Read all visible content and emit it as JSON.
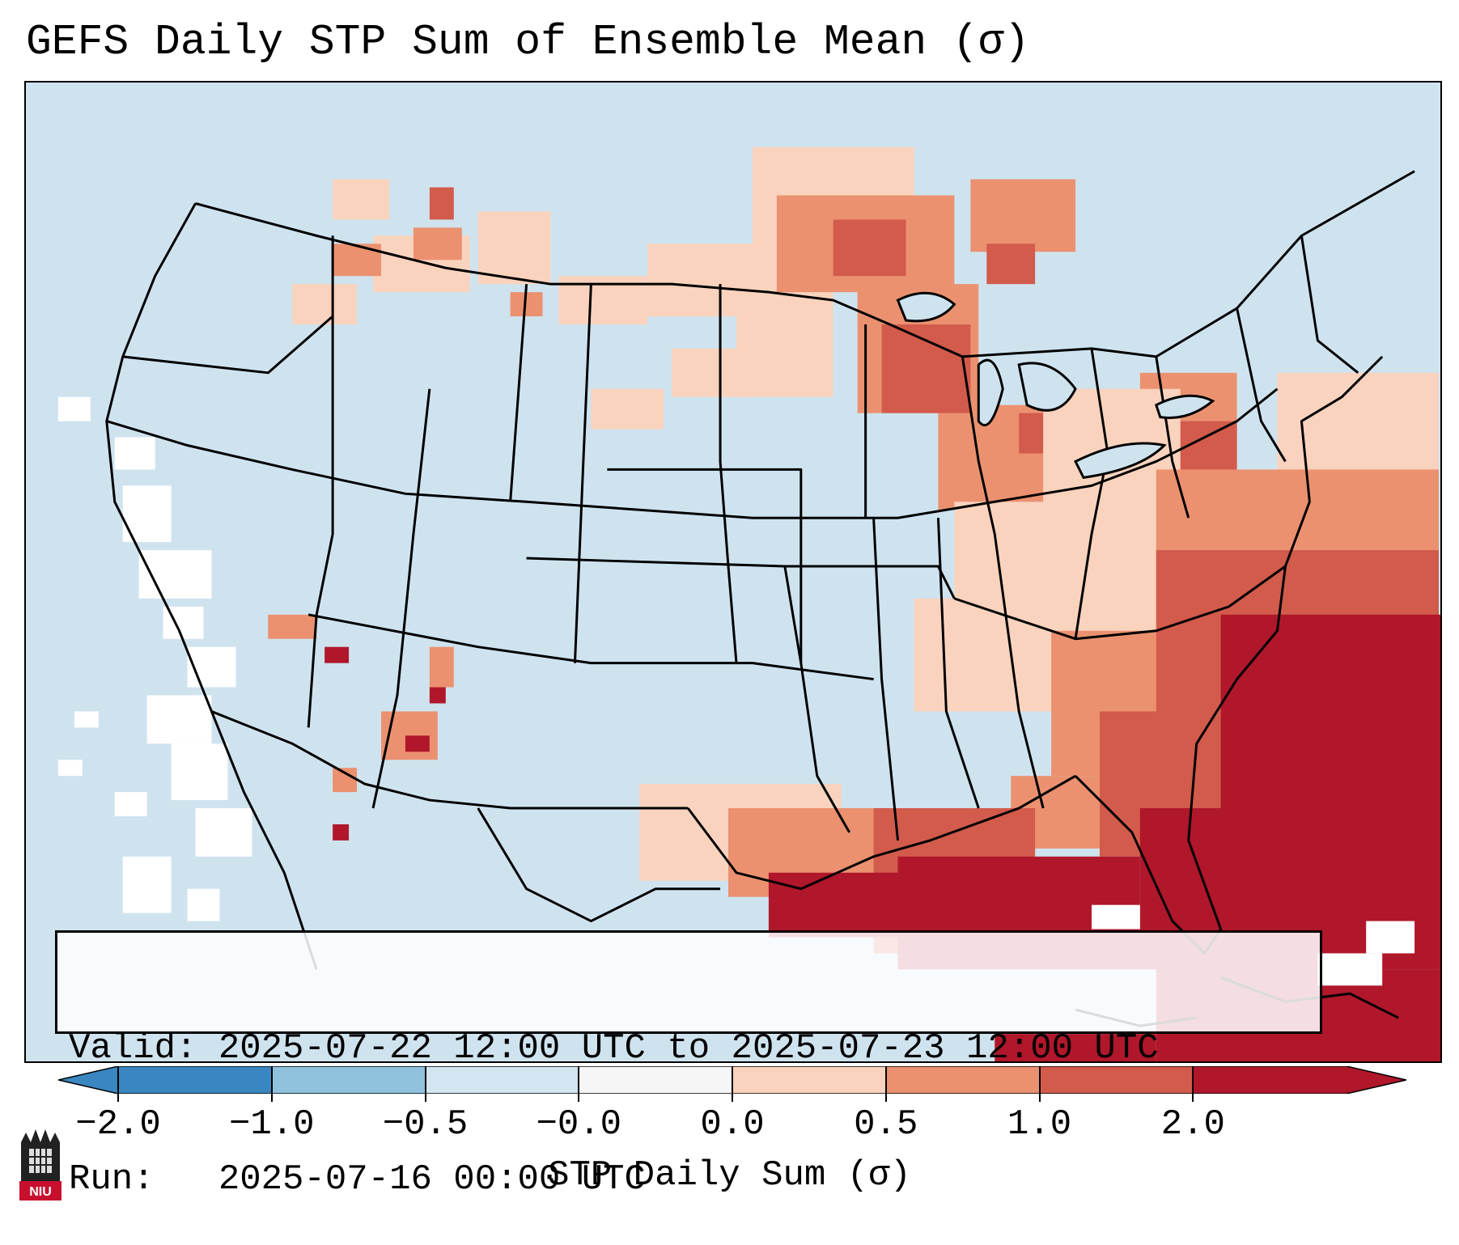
{
  "title": "GEFS Daily STP Sum of Ensemble Mean (σ)",
  "info": {
    "valid_label": "Valid:",
    "valid_value": "2025-07-22 12:00 UTC to 2025-07-23 12:00 UTC",
    "run_label": "Run:",
    "run_value": "2025-07-16 00:00 UTC"
  },
  "colorbar": {
    "label": "STP Daily Sum (σ)",
    "ticks": [
      "−2.0",
      "−1.0",
      "−0.5",
      "−0.0",
      "0.0",
      "0.5",
      "1.0",
      "2.0"
    ],
    "colors": [
      "#3a86c0",
      "#90c2de",
      "#d3e5f0",
      "#f6f6f6",
      "#f9d3be",
      "#eb9170",
      "#d25b4c",
      "#b0172a"
    ]
  },
  "logo": {
    "text": "NIU"
  },
  "colors": {
    "background": "#cfe3ef",
    "positive_light": "#f9d3be",
    "positive_mid": "#eb9170",
    "positive_strong": "#d25b4c",
    "positive_max": "#b0172a",
    "negative_light": "#90c2de",
    "neutral": "#ffffff"
  }
}
